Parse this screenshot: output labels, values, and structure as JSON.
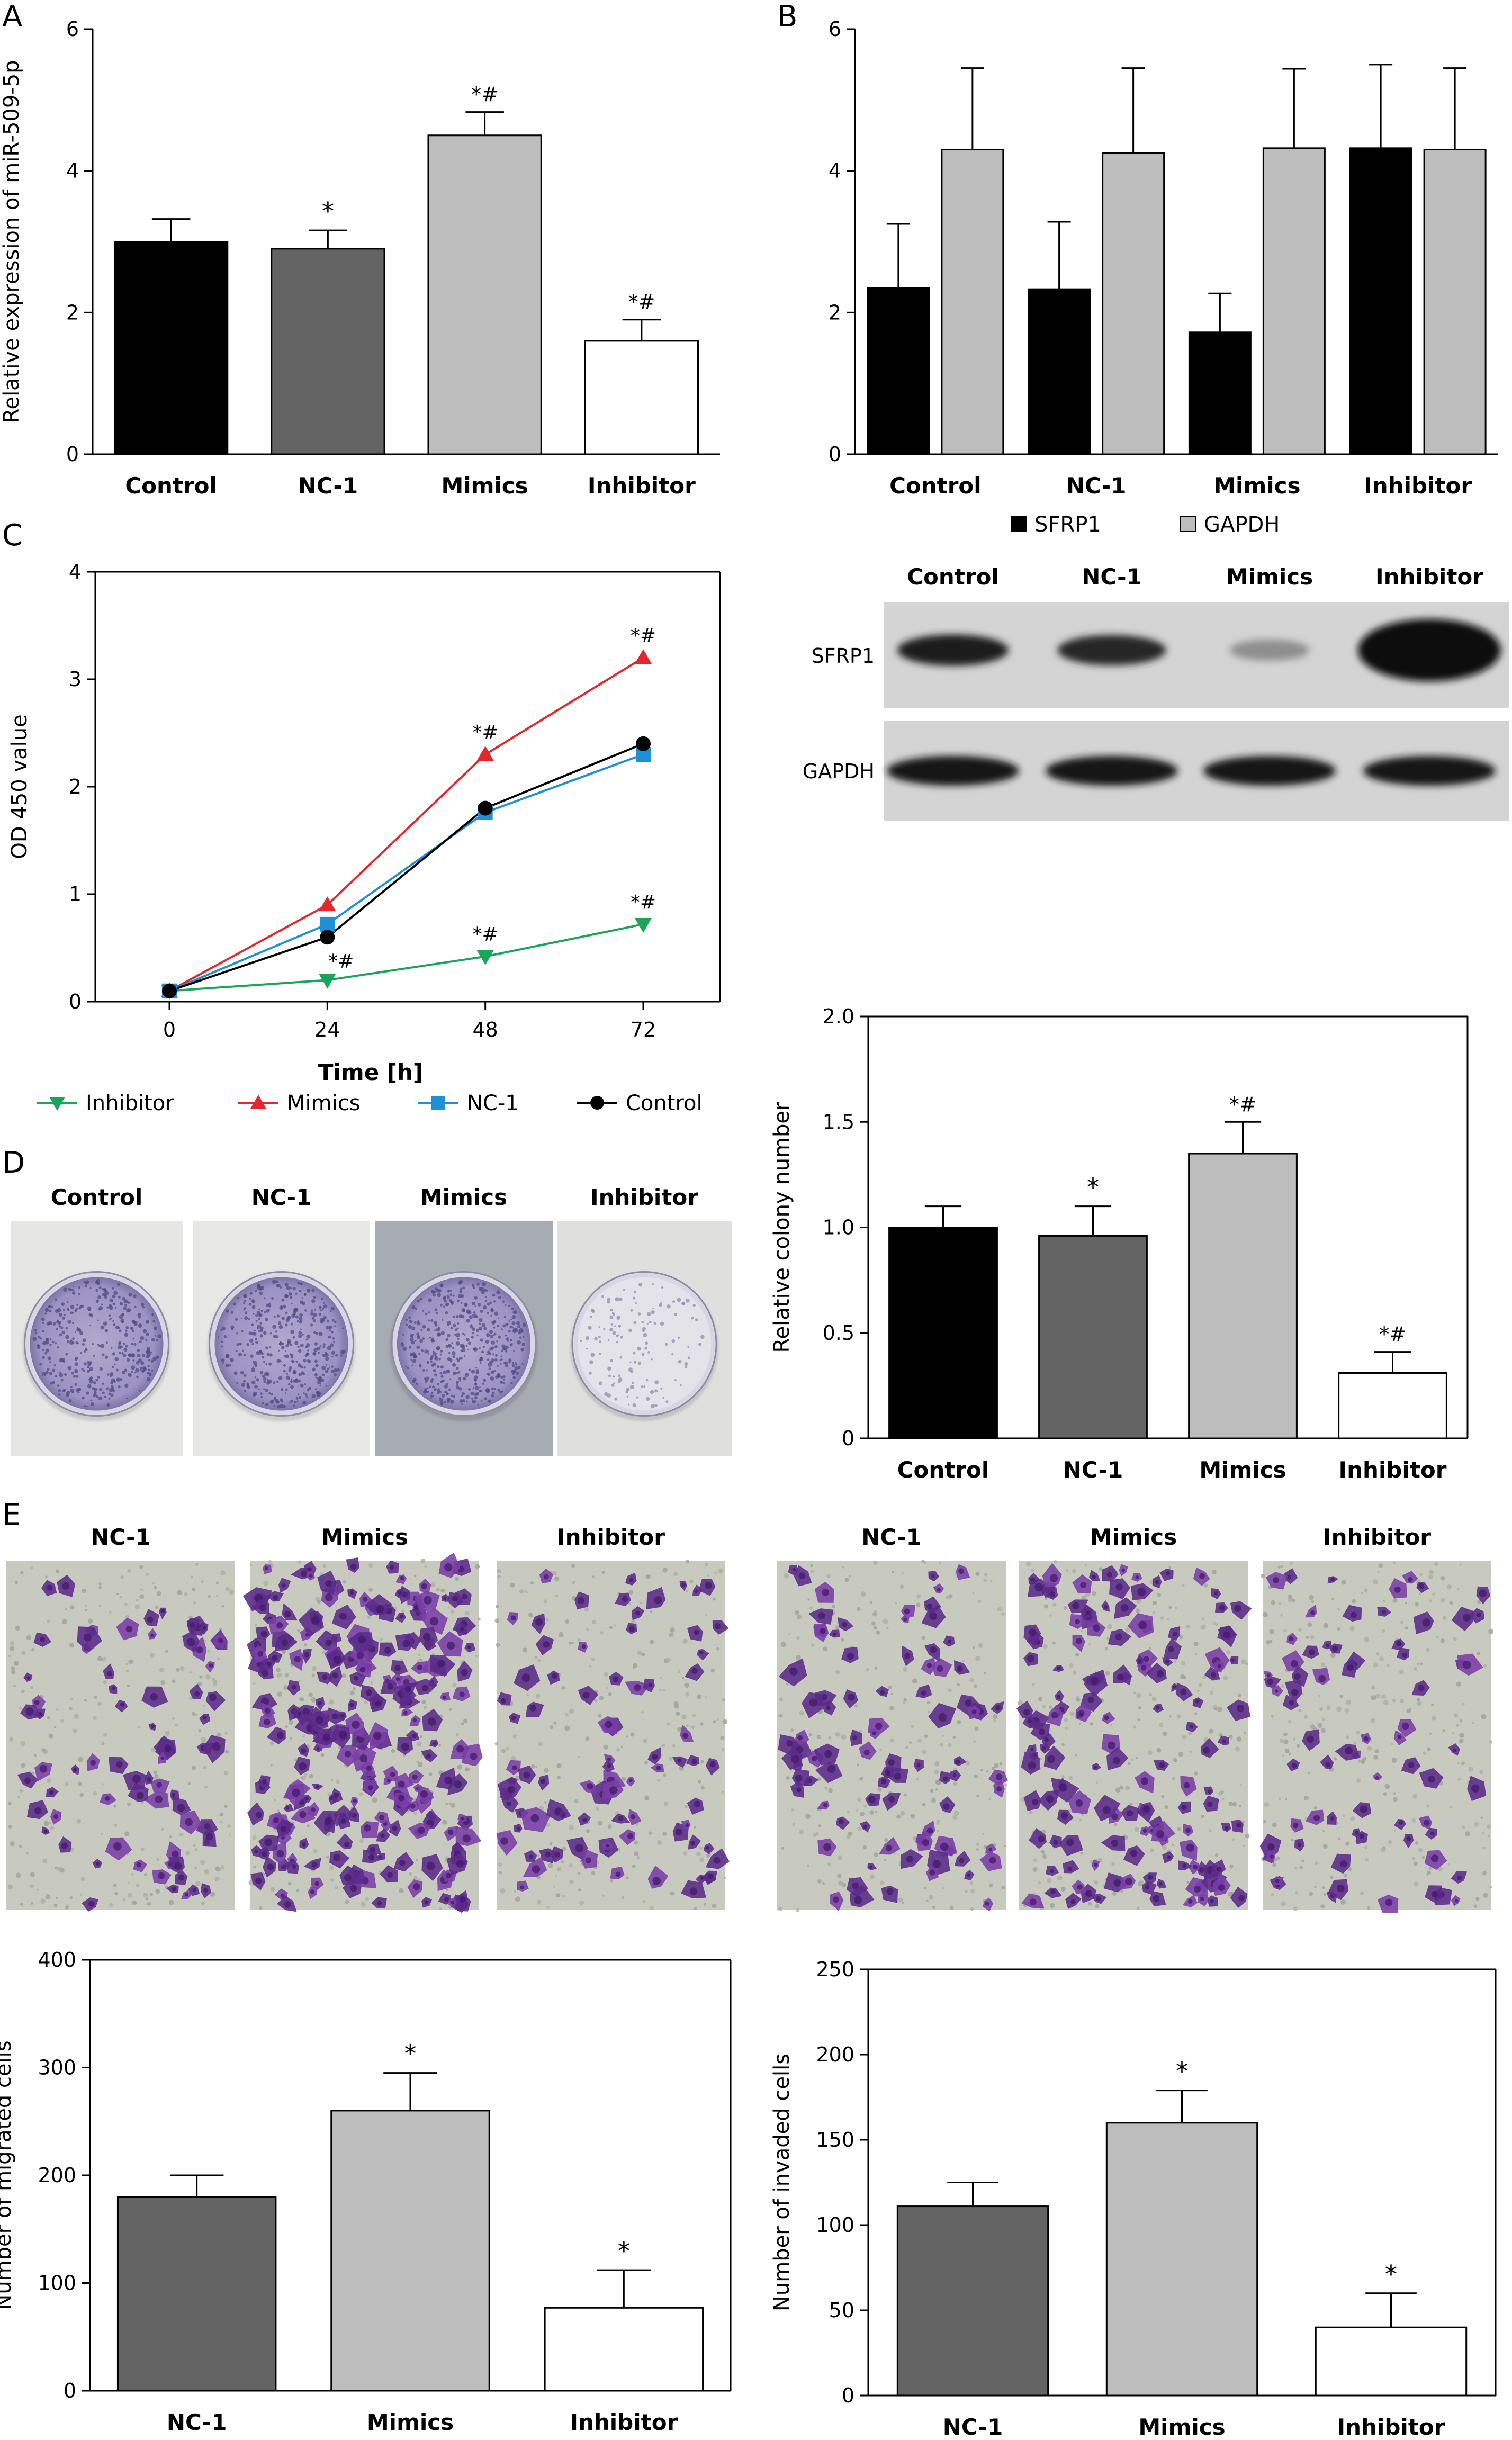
{
  "panel_letters": [
    "A",
    "B",
    "C",
    "D",
    "E"
  ],
  "chart_data": [
    {
      "id": "A",
      "type": "bar",
      "categories": [
        "Control",
        "NC-1",
        "Mimics",
        "Inhibitor"
      ],
      "values": [
        3.0,
        2.9,
        4.5,
        1.6
      ],
      "errors": [
        0.32,
        0.26,
        0.33,
        0.3
      ],
      "annotations": [
        "",
        "*",
        "*#",
        "*#"
      ],
      "colors": [
        "#000000",
        "#636363",
        "#bdbdbd",
        "#ffffff"
      ],
      "ylabel": "Relative expression of miR-509-5p",
      "ylim": [
        0,
        6
      ],
      "yticks": [
        0,
        2,
        4,
        6
      ]
    },
    {
      "id": "B",
      "type": "bar",
      "categories": [
        "Control",
        "NC-1",
        "Mimics",
        "Inhibitor"
      ],
      "series": [
        {
          "name": "SFRP1",
          "values": [
            2.35,
            2.33,
            1.72,
            4.32
          ],
          "errors": [
            0.9,
            0.95,
            0.55,
            1.18
          ],
          "color": "#000000"
        },
        {
          "name": "GAPDH",
          "values": [
            4.3,
            4.25,
            4.32,
            4.3
          ],
          "errors": [
            1.15,
            1.2,
            1.12,
            1.15
          ],
          "color": "#bdbdbd"
        }
      ],
      "ylim": [
        0,
        6
      ],
      "yticks": [
        0,
        2,
        4,
        6
      ],
      "legend": "bottom"
    },
    {
      "id": "C",
      "type": "line",
      "x": [
        0,
        24,
        48,
        72
      ],
      "xlabel": "Time [h]",
      "ylabel": "OD 450 value",
      "ylim": [
        0,
        4
      ],
      "yticks": [
        0,
        1,
        2,
        3,
        4
      ],
      "series": [
        {
          "name": "Inhibitor",
          "values": [
            0.1,
            0.2,
            0.42,
            0.72
          ],
          "color": "#1aa65a",
          "marker": "triangle-down",
          "annotations": [
            "",
            "*#",
            "*#",
            "*#"
          ]
        },
        {
          "name": "Mimics",
          "values": [
            0.1,
            0.9,
            2.3,
            3.2
          ],
          "color": "#e5262b",
          "marker": "triangle-up",
          "annotations": [
            "",
            "",
            "*#",
            "*#"
          ]
        },
        {
          "name": "NC-1",
          "values": [
            0.1,
            0.72,
            1.76,
            2.3
          ],
          "color": "#1e90d8",
          "marker": "square",
          "annotations": [
            "",
            "",
            "",
            ""
          ]
        },
        {
          "name": "Control",
          "values": [
            0.1,
            0.6,
            1.8,
            2.4
          ],
          "color": "#000000",
          "marker": "circle",
          "annotations": [
            "",
            "",
            "",
            ""
          ]
        }
      ],
      "legend": "bottom"
    },
    {
      "id": "D",
      "type": "bar",
      "categories": [
        "Control",
        "NC-1",
        "Mimics",
        "Inhibitor"
      ],
      "values": [
        1.0,
        0.96,
        1.35,
        0.31
      ],
      "errors": [
        0.1,
        0.14,
        0.15,
        0.1
      ],
      "annotations": [
        "",
        "*",
        "*#",
        "*#"
      ],
      "colors": [
        "#000000",
        "#636363",
        "#bdbdbd",
        "#ffffff"
      ],
      "ylabel": "Relative colony number",
      "ylim": [
        0,
        2.0
      ],
      "yticks": [
        0,
        0.5,
        1.0,
        1.5,
        2.0
      ],
      "ytick_labels": [
        "0",
        "0.5",
        "1.0",
        "1.5",
        "2.0"
      ]
    },
    {
      "id": "E1",
      "type": "bar",
      "categories": [
        "NC-1",
        "Mimics",
        "Inhibitor"
      ],
      "values": [
        180,
        260,
        77
      ],
      "errors": [
        20,
        35,
        35
      ],
      "annotations": [
        "",
        "*",
        "*"
      ],
      "colors": [
        "#636363",
        "#bdbdbd",
        "#ffffff"
      ],
      "ylabel": "Number of migrated cells",
      "ylim": [
        0,
        400
      ],
      "yticks": [
        0,
        100,
        200,
        300,
        400
      ]
    },
    {
      "id": "E2",
      "type": "bar",
      "categories": [
        "NC-1",
        "Mimics",
        "Inhibitor"
      ],
      "values": [
        111,
        160,
        40
      ],
      "errors": [
        14,
        19,
        20
      ],
      "annotations": [
        "",
        "*",
        "*"
      ],
      "colors": [
        "#636363",
        "#bdbdbd",
        "#ffffff"
      ],
      "ylabel": "Number of invaded cells",
      "ylim": [
        0,
        250
      ],
      "yticks": [
        0,
        50,
        100,
        150,
        200,
        250
      ]
    }
  ],
  "western_blot": {
    "columns": [
      "Control",
      "NC-1",
      "Mimics",
      "Inhibitor"
    ],
    "rows": [
      "SFRP1",
      "GAPDH"
    ],
    "band_intensity": {
      "SFRP1": [
        0.9,
        0.85,
        0.3,
        1.0
      ],
      "GAPDH": [
        0.95,
        0.95,
        0.95,
        0.95
      ]
    }
  },
  "colony_images": {
    "labels": [
      "Control",
      "NC-1",
      "Mimics",
      "Inhibitor"
    ],
    "density": [
      0.7,
      0.75,
      0.9,
      0.25
    ]
  },
  "transwell_images": {
    "migration_labels": [
      "NC-1",
      "Mimics",
      "Inhibitor"
    ],
    "invasion_labels": [
      "NC-1",
      "Mimics",
      "Inhibitor"
    ]
  }
}
